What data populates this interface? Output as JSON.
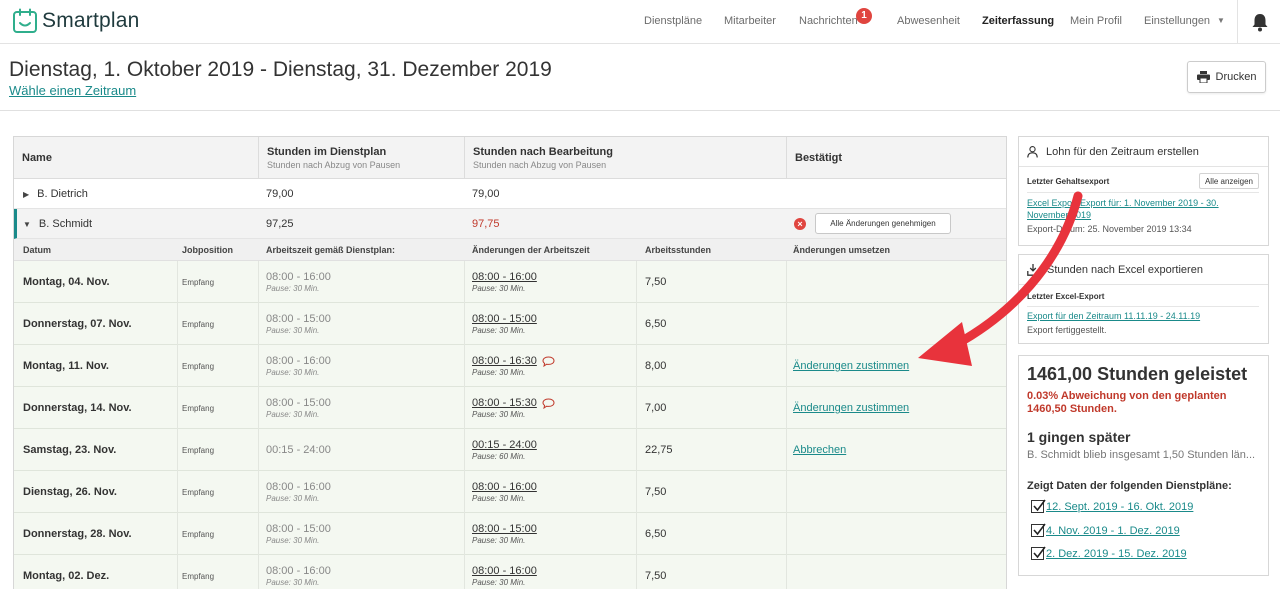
{
  "brand": {
    "name": "Smartplan",
    "accent": "#1a8a8a",
    "alert": "#e0453f"
  },
  "nav": {
    "items": [
      {
        "label": "Dienstpläne"
      },
      {
        "label": "Mitarbeiter"
      },
      {
        "label": "Nachrichten",
        "badge": "1"
      },
      {
        "label": "Abwesenheit"
      },
      {
        "label": "Zeiterfassung",
        "active": true
      },
      {
        "label": "Mein Profil"
      },
      {
        "label": "Einstellungen"
      }
    ],
    "caret": "▼"
  },
  "header": {
    "title": "Dienstag, 1. Oktober 2019 - Dienstag, 31. Dezember 2019",
    "subtitle_link": "Wähle einen Zeitraum",
    "print_label": "Drucken"
  },
  "table": {
    "columns": [
      {
        "title": "Name",
        "sub": ""
      },
      {
        "title": "Stunden im Dienstplan",
        "sub": "Stunden nach Abzug von Pausen"
      },
      {
        "title": "Stunden nach Bearbeitung",
        "sub": "Stunden nach Abzug von Pausen"
      },
      {
        "title": "Bestätigt",
        "sub": ""
      }
    ],
    "people": [
      {
        "name": "B. Dietrich",
        "toggle": "▶",
        "planned": "79,00",
        "edited": "79,00"
      },
      {
        "name": "B. Schmidt",
        "toggle": "▼",
        "planned": "97,25",
        "edited": "97,75",
        "approve_all": "Alle Änderungen genehmigen"
      }
    ],
    "detail_columns": [
      "Datum",
      "Jobposition",
      "Arbeitszeit gemäß Dienstplan:",
      "Änderungen der Arbeitszeit",
      "Arbeitsstunden",
      "Änderungen umsetzen"
    ],
    "rows": [
      {
        "date": "Montag, 04. Nov.",
        "job": "Empfang",
        "plan_time": "08:00 - 16:00",
        "plan_pause": "Pause: 30 Min.",
        "new_time": "08:00 - 16:00",
        "new_pause": "Pause: 30 Min.",
        "hours": "7,50",
        "action": ""
      },
      {
        "date": "Donnerstag, 07. Nov.",
        "job": "Empfang",
        "plan_time": "08:00 - 15:00",
        "plan_pause": "Pause: 30 Min.",
        "new_time": "08:00 - 15:00",
        "new_pause": "Pause: 30 Min.",
        "hours": "6,50",
        "action": ""
      },
      {
        "date": "Montag, 11. Nov.",
        "job": "Empfang",
        "plan_time": "08:00 - 16:00",
        "plan_pause": "Pause: 30 Min.",
        "new_time": "08:00 - 16:30",
        "new_pause": "Pause: 30 Min.",
        "hours": "8,00",
        "action": "Änderungen zustimmen",
        "state": "changed",
        "comment": true
      },
      {
        "date": "Donnerstag, 14. Nov.",
        "job": "Empfang",
        "plan_time": "08:00 - 15:00",
        "plan_pause": "Pause: 30 Min.",
        "new_time": "08:00 - 15:30",
        "new_pause": "Pause: 30 Min.",
        "hours": "7,00",
        "action": "Änderungen zustimmen",
        "state": "changed",
        "comment": true
      },
      {
        "date": "Samstag, 23. Nov.",
        "job": "Empfang",
        "plan_time": "00:15 - 24:00",
        "plan_pause": "",
        "new_time": "00:15 - 24:00",
        "new_pause": "Pause: 60 Min.",
        "hours": "22,75",
        "action": "Abbrechen",
        "state": "approved"
      },
      {
        "date": "Dienstag, 26. Nov.",
        "job": "Empfang",
        "plan_time": "08:00 - 16:00",
        "plan_pause": "Pause: 30 Min.",
        "new_time": "08:00 - 16:00",
        "new_pause": "Pause: 30 Min.",
        "hours": "7,50",
        "action": ""
      },
      {
        "date": "Donnerstag, 28. Nov.",
        "job": "Empfang",
        "plan_time": "08:00 - 15:00",
        "plan_pause": "Pause: 30 Min.",
        "new_time": "08:00 - 15:00",
        "new_pause": "Pause: 30 Min.",
        "hours": "6,50",
        "action": ""
      },
      {
        "date": "Montag, 02. Dez.",
        "job": "Empfang",
        "plan_time": "08:00 - 16:00",
        "plan_pause": "Pause: 30 Min.",
        "new_time": "08:00 - 16:00",
        "new_pause": "Pause: 30 Min.",
        "hours": "7,50",
        "action": ""
      }
    ]
  },
  "payroll_panel": {
    "title": "Lohn für den Zeitraum erstellen",
    "last_label": "Letzter Gehaltsexport",
    "show_all": "Alle anzeigen",
    "link_line1": "Excel Export Export für: 1. November 2019 - 30.",
    "link_line2": "November 2019",
    "export_date": "Export-Datum: 25. November 2019 13:34"
  },
  "excel_panel": {
    "title": "Stunden nach Excel exportieren",
    "last_label": "Letzter Excel-Export",
    "link": "Export für den Zeitraum 11.11.19 - 24.11.19",
    "status": "Export fertiggestellt."
  },
  "stats": {
    "hours": "1461,00 Stunden geleistet",
    "deviation": "0.03% Abweichung von den geplanten 1460,50 Stunden.",
    "later_title": "1 gingen später",
    "later_text": "B. Schmidt blieb insgesamt 1,50 Stunden län...",
    "plans_title": "Zeigt Daten der folgenden Dienstpläne:",
    "plans": [
      "12. Sept. 2019 - 16. Okt. 2019",
      "4. Nov. 2019 - 1. Dez. 2019",
      "2. Dez. 2019 - 15. Dez. 2019"
    ]
  },
  "annotation": {
    "arrow_color": "#e8333c"
  }
}
